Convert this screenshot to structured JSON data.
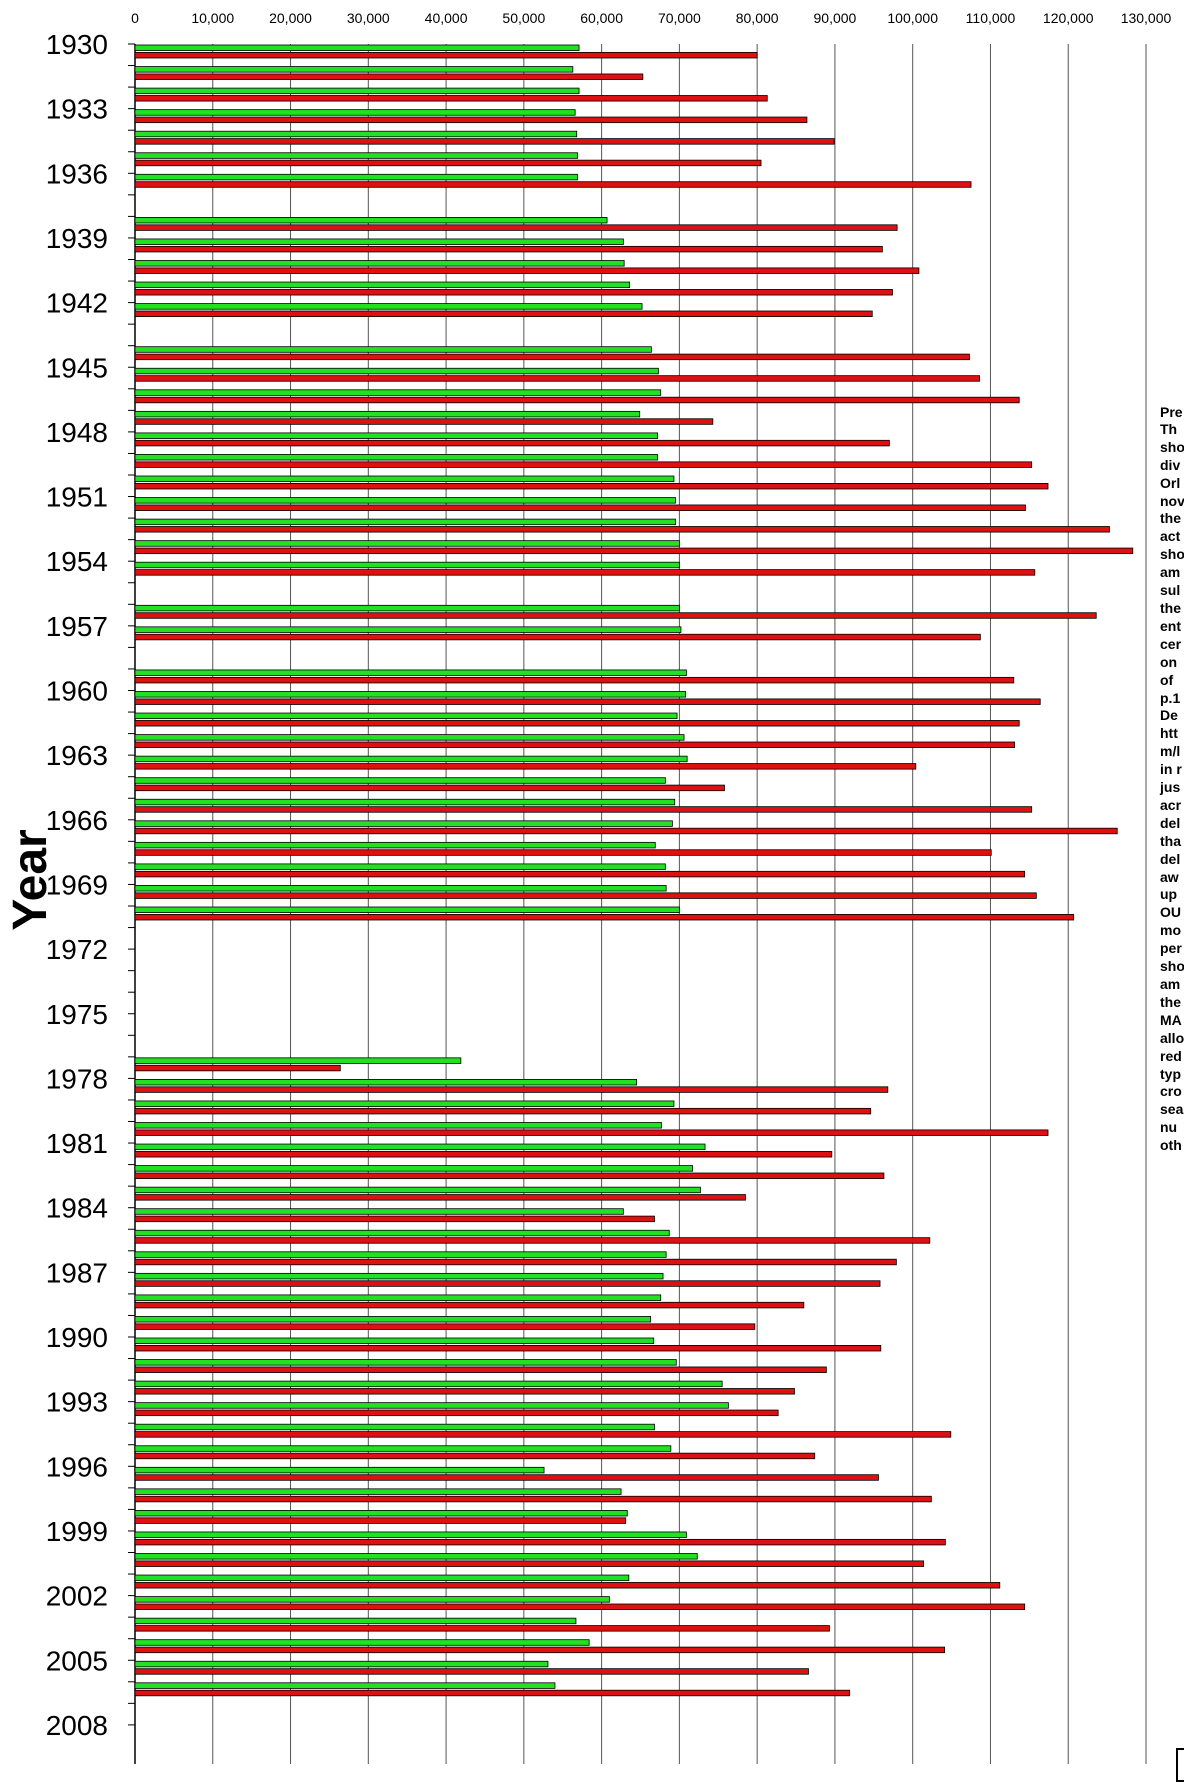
{
  "chart_data": {
    "type": "bar",
    "orientation": "horizontal",
    "xlim": [
      0,
      130000
    ],
    "x_ticks": [
      "0",
      "10,000",
      "20,000",
      "30,000",
      "40,000",
      "50,000",
      "60,000",
      "70,000",
      "80,000",
      "90,000",
      "100,000",
      "110,000",
      "120,000",
      "130,000"
    ],
    "ylabel": "Year",
    "y_tick_labels": [
      "1930",
      "1933",
      "1936",
      "1939",
      "1942",
      "1945",
      "1948",
      "1951",
      "1954",
      "1957",
      "1960",
      "1963",
      "1966",
      "1969",
      "1972",
      "1975",
      "1978",
      "1981",
      "1984",
      "1987",
      "1990",
      "1993",
      "1996",
      "1999",
      "2002",
      "2005",
      "2008"
    ],
    "grid": "vertical",
    "years": [
      1930,
      1931,
      1932,
      1933,
      1934,
      1935,
      1936,
      1937,
      1938,
      1939,
      1940,
      1941,
      1942,
      1943,
      1944,
      1945,
      1946,
      1947,
      1948,
      1949,
      1950,
      1951,
      1952,
      1953,
      1954,
      1955,
      1956,
      1957,
      1958,
      1959,
      1960,
      1961,
      1962,
      1963,
      1964,
      1965,
      1966,
      1967,
      1968,
      1969,
      1970,
      1971,
      1972,
      1973,
      1974,
      1975,
      1976,
      1977,
      1978,
      1979,
      1980,
      1981,
      1982,
      1983,
      1984,
      1985,
      1986,
      1987,
      1988,
      1989,
      1990,
      1991,
      1992,
      1993,
      1994,
      1995,
      1996,
      1997,
      1998,
      1999,
      2000,
      2001,
      2002,
      2003,
      2004,
      2005,
      2006,
      2007,
      2008
    ],
    "series": [
      {
        "color": "#22e022",
        "values": [
          57100,
          56300,
          57100,
          56600,
          56800,
          56900,
          56900,
          null,
          60700,
          62800,
          62900,
          63600,
          65200,
          null,
          66400,
          67300,
          67600,
          64900,
          67200,
          67200,
          69300,
          69500,
          69500,
          70000,
          70000,
          null,
          70000,
          70200,
          null,
          70900,
          70800,
          69700,
          70600,
          71000,
          68200,
          69400,
          69100,
          66900,
          68200,
          68300,
          70000,
          null,
          null,
          null,
          null,
          null,
          null,
          41900,
          64500,
          69300,
          67700,
          73300,
          71700,
          72700,
          62800,
          68700,
          68300,
          67900,
          67600,
          66300,
          66700,
          69600,
          75500,
          76300,
          66800,
          68900,
          52600,
          62500,
          63300,
          70900,
          72300,
          63500,
          61000,
          56700,
          58400,
          53100,
          54000,
          null,
          null
        ]
      },
      {
        "color": "#dd1111",
        "values": [
          80000,
          65300,
          81300,
          86400,
          89900,
          80500,
          107500,
          null,
          98000,
          96100,
          100800,
          97400,
          94800,
          null,
          107300,
          108600,
          113700,
          74300,
          97000,
          115300,
          117400,
          114500,
          125300,
          128300,
          115700,
          null,
          123600,
          108700,
          null,
          113000,
          116400,
          113700,
          113100,
          100400,
          75800,
          115300,
          126300,
          110100,
          114400,
          115900,
          120700,
          null,
          null,
          null,
          null,
          null,
          null,
          26400,
          96800,
          94600,
          117400,
          89600,
          96300,
          78500,
          66800,
          102200,
          97900,
          95800,
          86000,
          79700,
          95900,
          88900,
          84800,
          82700,
          104900,
          87400,
          95600,
          102400,
          63100,
          104200,
          101400,
          111200,
          114400,
          89300,
          104100,
          86600,
          91900,
          null,
          null
        ]
      }
    ]
  },
  "side_note": {
    "title": "Pre",
    "lines": [
      "Th",
      "sho",
      "div",
      "Orl",
      "nov",
      "the",
      "act",
      "sho",
      "am",
      "sul",
      "the",
      "ent",
      "cer",
      "on",
      "of ",
      "p.1",
      "De",
      "htt",
      "m/l",
      "in r",
      "jus",
      "acr",
      "del",
      "tha",
      "del",
      "aw",
      "up",
      "OU",
      "mo",
      "per",
      "sho",
      "am",
      "the",
      "MA",
      "allo",
      "red",
      "typ",
      "cro",
      "sea",
      "nu",
      "oth"
    ]
  }
}
